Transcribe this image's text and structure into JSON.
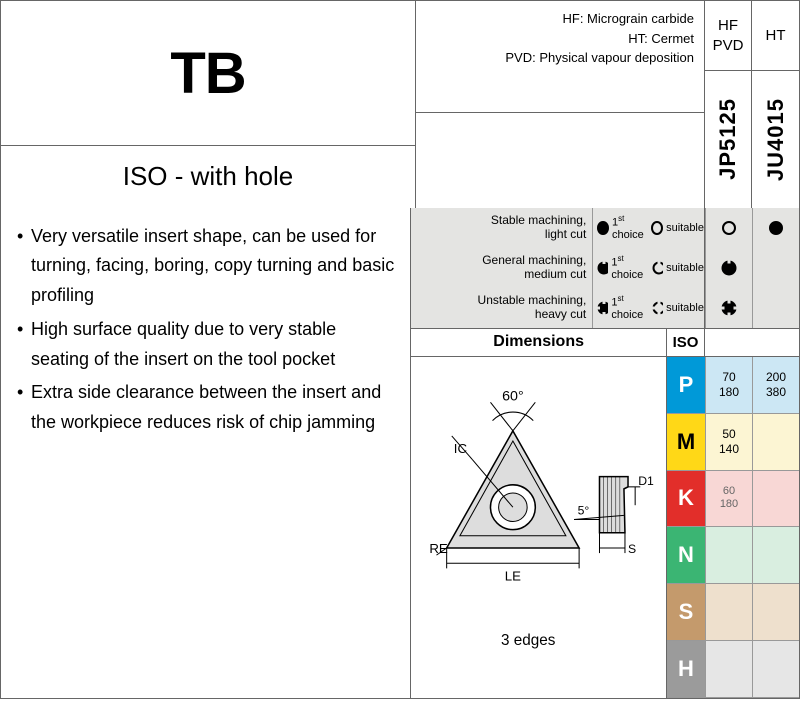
{
  "header": {
    "code": "TB",
    "subtitle": "ISO - with hole"
  },
  "definitions": [
    "HF: Micrograin carbide",
    "HT: Cermet",
    "PVD: Physical vapour deposition"
  ],
  "grades": [
    {
      "top1": "HF",
      "top2": "PVD",
      "code": "JP5125"
    },
    {
      "top1": "HT",
      "top2": "",
      "code": "JU4015"
    }
  ],
  "bullets": [
    "Very versatile insert shape, can be used for turning, facing, boring, copy turning and basic profiling",
    "High surface quality due to very stable seating of the insert on the tool pocket",
    "Extra side clearance between the insert and the workpiece reduces risk of chip jamming"
  ],
  "legend_rows": [
    {
      "label1": "Stable machining,",
      "label2": "light cut"
    },
    {
      "label1": "General machining,",
      "label2": "medium cut"
    },
    {
      "label1": "Unstable machining,",
      "label2": "heavy cut"
    }
  ],
  "legend_terms": {
    "first": "1",
    "first_suffix": "st",
    "choice": "choice",
    "suitable": "suitable"
  },
  "grade_marks": [
    [
      "open",
      "filled"
    ],
    [
      "notch-f",
      ""
    ],
    [
      "cross-f",
      ""
    ]
  ],
  "dim_header": "Dimensions",
  "iso_label": "ISO",
  "iso_rows": [
    {
      "code": "P",
      "bg": "#0099d8",
      "cells": [
        {
          "v1": "70",
          "v2": "180",
          "bg": "#cce7f4"
        },
        {
          "v1": "200",
          "v2": "380",
          "bg": "#cce7f4"
        }
      ]
    },
    {
      "code": "M",
      "bg": "#ffd817",
      "cells": [
        {
          "v1": "50",
          "v2": "140",
          "bg": "#fcf5d3"
        },
        {
          "v1": "",
          "v2": "",
          "bg": "#fcf5d3"
        }
      ]
    },
    {
      "code": "K",
      "bg": "#e22e2a",
      "cells": [
        {
          "v1": "60",
          "v2": "180",
          "bg": "#f8d7d5",
          "small": true
        },
        {
          "v1": "",
          "v2": "",
          "bg": "#f8d7d5"
        }
      ]
    },
    {
      "code": "N",
      "bg": "#3bb573",
      "cells": [
        {
          "v1": "",
          "v2": "",
          "bg": "#d9eee0"
        },
        {
          "v1": "",
          "v2": "",
          "bg": "#d9eee0"
        }
      ]
    },
    {
      "code": "S",
      "bg": "#c49a6c",
      "cells": [
        {
          "v1": "",
          "v2": "",
          "bg": "#eee0cd"
        },
        {
          "v1": "",
          "v2": "",
          "bg": "#eee0cd"
        }
      ]
    },
    {
      "code": "H",
      "bg": "#9b9b9b",
      "cells": [
        {
          "v1": "",
          "v2": "",
          "bg": "#e6e6e6"
        },
        {
          "v1": "",
          "v2": "",
          "bg": "#e6e6e6"
        }
      ]
    }
  ],
  "diagram": {
    "angle": "60°",
    "ic": "IC",
    "re": "RE",
    "le": "LE",
    "d1": "D1",
    "five": "5°",
    "s": "S",
    "edges": "3 edges"
  }
}
